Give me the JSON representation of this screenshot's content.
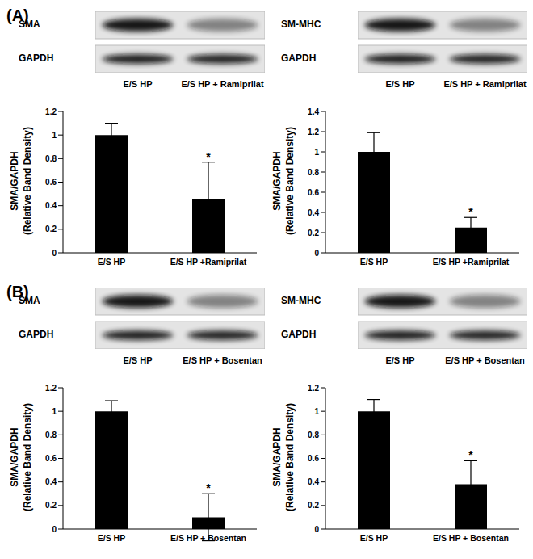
{
  "panel_labels": [
    "(A)",
    "(B)"
  ],
  "chart_data": [
    {
      "type": "bar",
      "blot": {
        "rows": [
          "SMA",
          "GAPDH"
        ],
        "lanes": [
          "E/S HP",
          "E/S HP + Ramiprilat"
        ]
      },
      "ylabel": [
        "SMA/GAPDH",
        "(Relative Band Density)"
      ],
      "categories": [
        "E/S HP",
        "E/S HP +Ramiprilat"
      ],
      "values": [
        1,
        0.46
      ],
      "errors": [
        0.1,
        0.31
      ],
      "significance": [
        null,
        "*"
      ],
      "color": "#000000",
      "ylim": [
        0,
        1.2
      ],
      "yticks": [
        0,
        0.2,
        0.4,
        0.6,
        0.8,
        1,
        1.2
      ]
    },
    {
      "type": "bar",
      "blot": {
        "rows": [
          "SM-MHC",
          "GAPDH"
        ],
        "lanes": [
          "E/S HP",
          "E/S HP + Ramiprilat"
        ]
      },
      "ylabel": [
        "SMA/GAPDH",
        "(Relative Band Density)"
      ],
      "categories": [
        "E/S HP",
        "E/S HP +Ramiprilat"
      ],
      "values": [
        1,
        0.25
      ],
      "errors": [
        0.19,
        0.1
      ],
      "significance": [
        null,
        "*"
      ],
      "color": "#000000",
      "ylim": [
        0,
        1.4
      ],
      "yticks": [
        0,
        0.2,
        0.4,
        0.6,
        0.8,
        1,
        1.2,
        1.4
      ]
    },
    {
      "type": "bar",
      "blot": {
        "rows": [
          "SMA",
          "GAPDH"
        ],
        "lanes": [
          "E/S HP",
          "E/S HP + Bosentan"
        ]
      },
      "ylabel": [
        "SMA/GAPDH",
        "(Relative Band Density)"
      ],
      "categories": [
        "E/S HP",
        "E/S HP + Bosentan"
      ],
      "values": [
        1,
        0.1
      ],
      "errors": [
        0.09,
        0.2
      ],
      "significance": [
        null,
        "*"
      ],
      "color": "#000000",
      "ylim": [
        0,
        1.2
      ],
      "yticks": [
        0,
        0.2,
        0.4,
        0.6,
        0.8,
        1,
        1.2
      ]
    },
    {
      "type": "bar",
      "blot": {
        "rows": [
          "SM-MHC",
          "GAPDH"
        ],
        "lanes": [
          "E/S HP",
          "E/S HP + Bosentan"
        ]
      },
      "ylabel": [
        "SMA/GAPDH",
        "(Relative Band Density)"
      ],
      "categories": [
        "E/S HP",
        "E/S HP + Bosentan"
      ],
      "values": [
        1,
        0.38
      ],
      "errors": [
        0.1,
        0.2
      ],
      "significance": [
        null,
        "*"
      ],
      "color": "#000000",
      "ylim": [
        0,
        1.2
      ],
      "yticks": [
        0,
        0.2,
        0.4,
        0.6,
        0.8,
        1,
        1.2
      ]
    }
  ]
}
